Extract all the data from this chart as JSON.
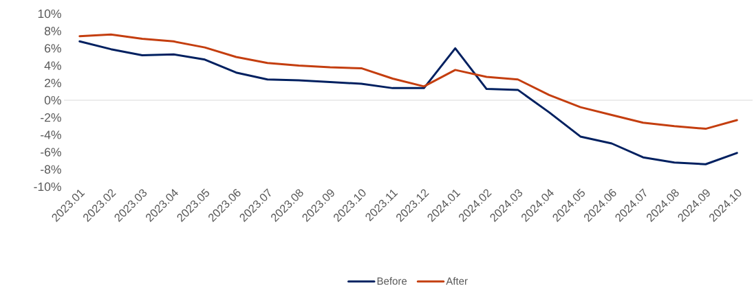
{
  "chart_data": {
    "type": "line",
    "categories": [
      "2023.01",
      "2023.02",
      "2023.03",
      "2023.04",
      "2023.05",
      "2023.06",
      "2023.07",
      "2023.08",
      "2023.09",
      "2023.10",
      "2023.11",
      "2023.12",
      "2024.01",
      "2024.02",
      "2024.03",
      "2024.04",
      "2024.05",
      "2024.06",
      "2024.07",
      "2024.08",
      "2024.09",
      "2024.10"
    ],
    "series": [
      {
        "name": "Before",
        "color": "#002060",
        "values": [
          6.8,
          5.9,
          5.2,
          5.3,
          4.7,
          3.2,
          2.4,
          2.3,
          2.1,
          1.9,
          1.4,
          1.4,
          6.0,
          1.3,
          1.2,
          -1.4,
          -4.2,
          -5.0,
          -6.6,
          -7.2,
          -7.4,
          -6.1
        ]
      },
      {
        "name": "After",
        "color": "#c43e0f",
        "values": [
          7.4,
          7.6,
          7.1,
          6.8,
          6.1,
          5.0,
          4.3,
          4.0,
          3.8,
          3.7,
          2.5,
          1.6,
          3.5,
          2.7,
          2.4,
          0.6,
          -0.8,
          -1.7,
          -2.6,
          -3.0,
          -3.3,
          -2.3
        ]
      }
    ],
    "ylim": [
      -10,
      10
    ],
    "yticks": [
      {
        "value": -10,
        "label": "-10%"
      },
      {
        "value": -8,
        "label": "-8%"
      },
      {
        "value": -6,
        "label": "-6%"
      },
      {
        "value": -4,
        "label": "-4%"
      },
      {
        "value": -2,
        "label": "-2%"
      },
      {
        "value": 0,
        "label": "0%"
      },
      {
        "value": 2,
        "label": "2%"
      },
      {
        "value": 4,
        "label": "4%"
      },
      {
        "value": 6,
        "label": "6%"
      },
      {
        "value": 8,
        "label": "8%"
      },
      {
        "value": 10,
        "label": "10%"
      }
    ],
    "ref_lines": [
      {
        "axis": "y",
        "value": 0,
        "color": "#d9d9d9"
      }
    ],
    "grid": false,
    "legend": "bottom",
    "marker": "none",
    "line_style": "solid"
  }
}
